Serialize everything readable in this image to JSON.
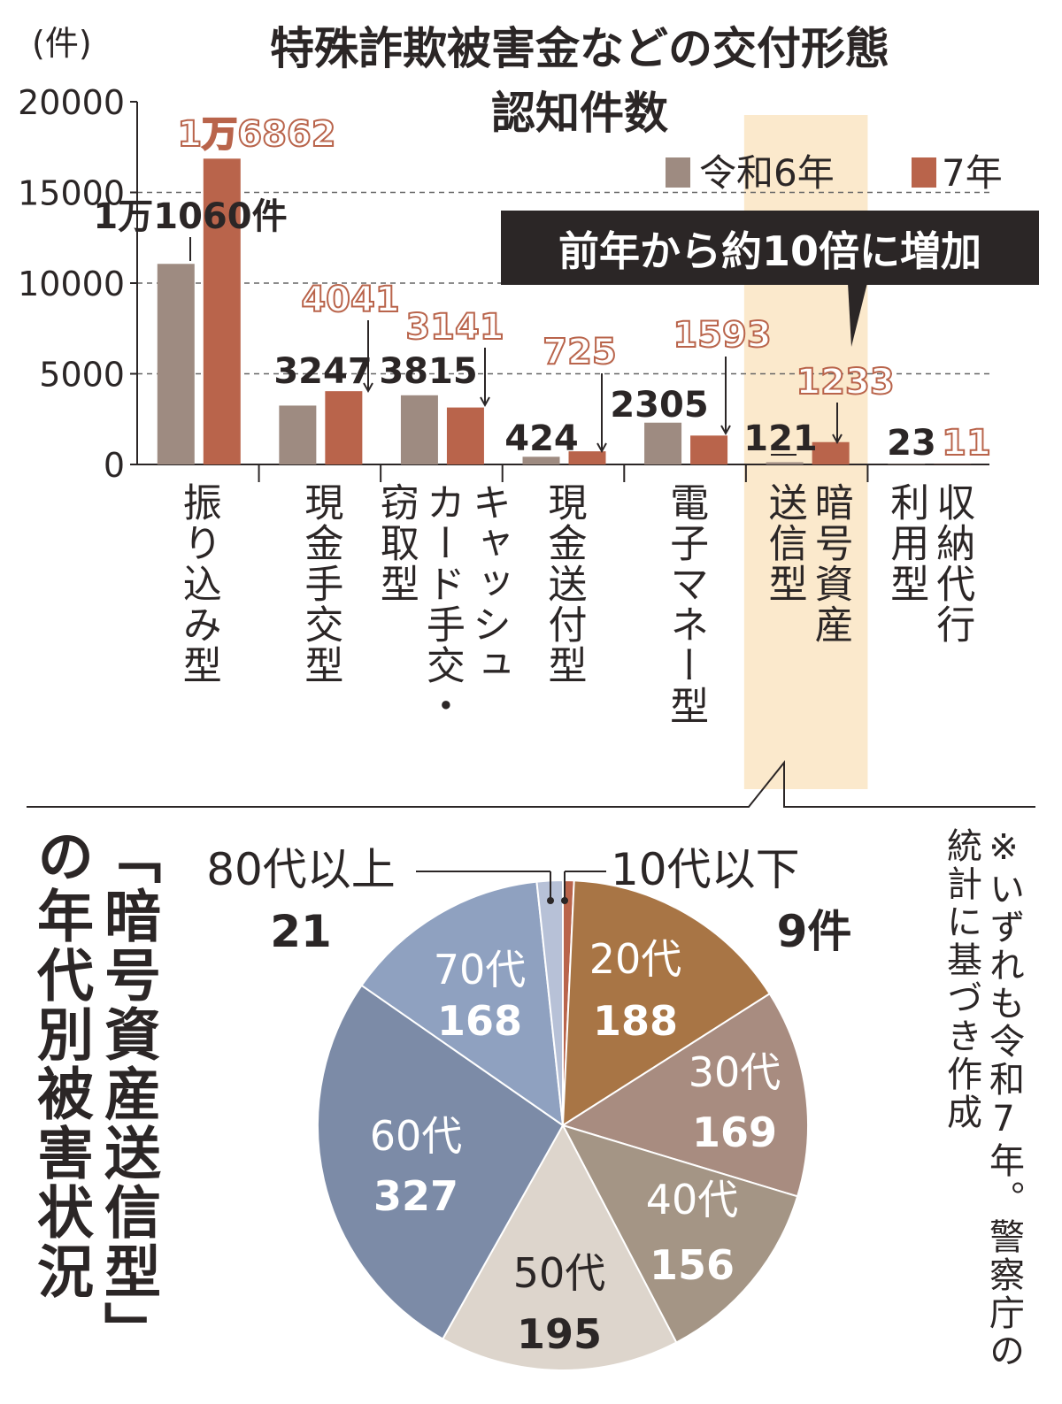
{
  "bar_chart": {
    "title_line1": "特殊詐欺被害金などの交付形態",
    "title_line2": "認知件数",
    "unit": "(件)",
    "legend": {
      "r6": "令和6年",
      "r7": "7年"
    },
    "callout": "前年から約10倍に増加",
    "colors": {
      "r6": "#9e8b81",
      "r7": "#b9644b",
      "highlight": "#fbe9cc",
      "callout_bg": "#2b2626"
    }
  },
  "pie_chart": {
    "title": "「暗号資産送信型」の年代別被害状況",
    "note": "※いずれも令和7年。警察庁の統計に基づき作成"
  },
  "chart_data": [
    {
      "type": "bar",
      "title": "特殊詐欺被害金などの交付形態 認知件数",
      "ylabel": "(件)",
      "ylim": [
        0,
        20000
      ],
      "yticks": [
        "0",
        "5000",
        "10000",
        "15000",
        "20000"
      ],
      "categories": [
        "振り込み型",
        "現金手交型",
        "キャッシュカード手交・窃取型",
        "現金送付型",
        "電子マネー型",
        "暗号資産送信型",
        "収納代行利用型"
      ],
      "category_lines": [
        [
          "振り込み型"
        ],
        [
          "現金手交型"
        ],
        [
          "キャッシュ",
          "カード手交・",
          "窃取型"
        ],
        [
          "現金送付型"
        ],
        [
          "電子マネー型"
        ],
        [
          "暗号資産",
          "送信型"
        ],
        [
          "収納代行",
          "利用型"
        ]
      ],
      "series": [
        {
          "name": "令和6年",
          "values": [
            11060,
            3247,
            3815,
            424,
            2305,
            121,
            23
          ],
          "labels": [
            "1万1060件",
            "3247",
            "3815",
            "424",
            "2305",
            "121",
            "23"
          ]
        },
        {
          "name": "7年",
          "values": [
            16862,
            4041,
            3141,
            725,
            1593,
            1233,
            11
          ],
          "labels": [
            "1万6862",
            "4041",
            "3141",
            "725",
            "1593",
            "1233",
            "11"
          ]
        }
      ],
      "grid": "dashed at 5000, 10000, 15000",
      "legend_position": "top-right"
    },
    {
      "type": "pie",
      "title": "「暗号資産送信型」の年代別被害状況",
      "slices": [
        {
          "label": "10代以下",
          "value": 9,
          "value_label": "9件",
          "color": "#b9644b"
        },
        {
          "label": "20代",
          "value": 188,
          "value_label": "188",
          "color": "#a87545"
        },
        {
          "label": "30代",
          "value": 169,
          "value_label": "169",
          "color": "#a88c80"
        },
        {
          "label": "40代",
          "value": 156,
          "value_label": "156",
          "color": "#a49585"
        },
        {
          "label": "50代",
          "value": 195,
          "value_label": "195",
          "color": "#ddd5cc"
        },
        {
          "label": "60代",
          "value": 327,
          "value_label": "327",
          "color": "#7c8ba7"
        },
        {
          "label": "70代",
          "value": 168,
          "value_label": "168",
          "color": "#8fa1c0"
        },
        {
          "label": "80代以上",
          "value": 21,
          "value_label": "21",
          "color": "#b7c1d7"
        }
      ]
    }
  ]
}
